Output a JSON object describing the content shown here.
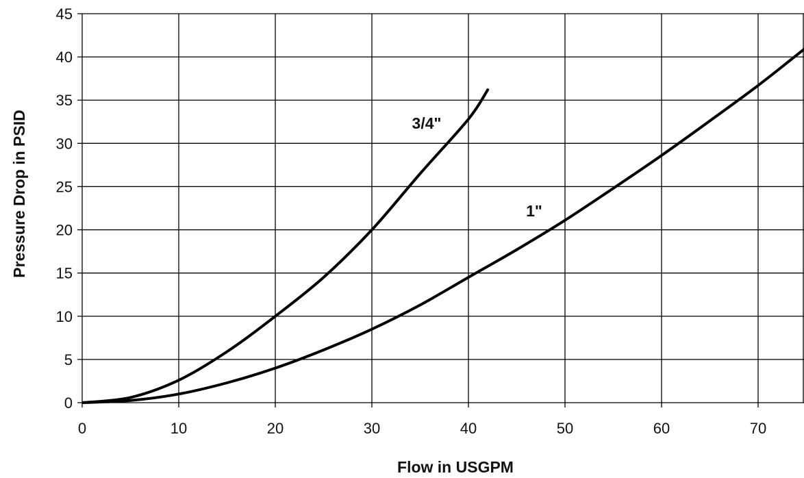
{
  "chart_data": {
    "type": "line",
    "xlabel": "Flow in USGPM",
    "ylabel": "Pressure Drop in PSID",
    "xlim": [
      0,
      75
    ],
    "ylim": [
      0,
      45
    ],
    "xticks": [
      0,
      10,
      20,
      30,
      40,
      50,
      60,
      70
    ],
    "yticks": [
      0,
      5,
      10,
      15,
      20,
      25,
      30,
      35,
      40,
      45
    ],
    "grid": true,
    "series": [
      {
        "name": "3/4\"",
        "x": [
          0,
          5,
          10,
          15,
          20,
          25,
          30,
          35,
          40,
          42
        ],
        "y": [
          0,
          0.6,
          2.6,
          5.9,
          10.0,
          14.5,
          20.0,
          26.5,
          32.8,
          36.2
        ]
      },
      {
        "name": "1\"",
        "x": [
          0,
          5,
          10,
          15,
          20,
          25,
          30,
          35,
          40,
          45,
          50,
          55,
          60,
          65,
          70,
          75
        ],
        "y": [
          0,
          0.25,
          1.0,
          2.3,
          4.0,
          6.1,
          8.5,
          11.3,
          14.5,
          17.7,
          21.1,
          24.8,
          28.6,
          32.6,
          36.7,
          41.1
        ]
      }
    ]
  }
}
